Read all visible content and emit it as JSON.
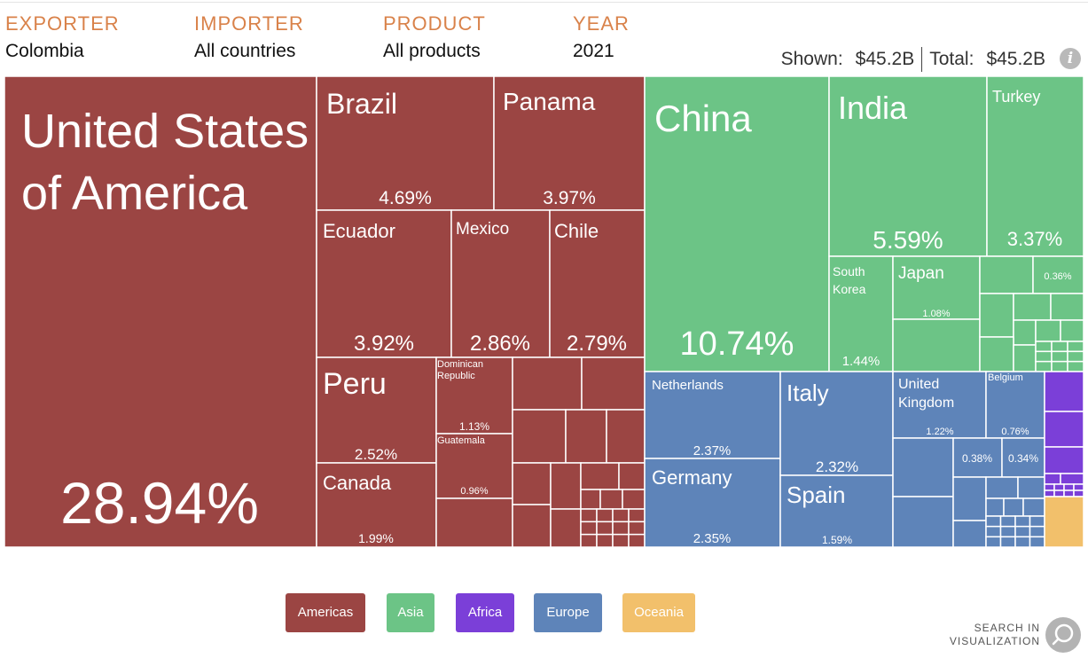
{
  "filters": [
    {
      "label": "EXPORTER",
      "value": "Colombia"
    },
    {
      "label": "IMPORTER",
      "value": "All countries"
    },
    {
      "label": "PRODUCT",
      "value": "All products"
    },
    {
      "label": "YEAR",
      "value": "2021"
    }
  ],
  "totals": {
    "shown_label": "Shown:",
    "shown_value": "$45.2B",
    "total_label": "Total:",
    "total_value": "$45.2B"
  },
  "info_icon": "info-icon",
  "colors": {
    "Americas": "#9b4543",
    "Asia": "#6cc486",
    "Africa": "#7b3fd8",
    "Europe": "#5e84b9",
    "Oceania": "#f2c06b"
  },
  "legend": [
    {
      "label": "Americas",
      "color": "#9b4543"
    },
    {
      "label": "Asia",
      "color": "#6cc486"
    },
    {
      "label": "Africa",
      "color": "#7b3fd8"
    },
    {
      "label": "Europe",
      "color": "#5e84b9"
    },
    {
      "label": "Oceania",
      "color": "#f2c06b"
    }
  ],
  "search": {
    "line1": "SEARCH IN",
    "line2": "VISUALIZATION",
    "icon": "search-icon"
  },
  "chart_data": {
    "type": "treemap",
    "title": "Colombia exports to all countries, all products, 2021",
    "total": "$45.2B",
    "unit": "percent of total exports",
    "items": [
      {
        "name": "United States of America",
        "region": "Americas",
        "value": 28.94,
        "label": "28.94%"
      },
      {
        "name": "Brazil",
        "region": "Americas",
        "value": 4.69,
        "label": "4.69%"
      },
      {
        "name": "Panama",
        "region": "Americas",
        "value": 3.97,
        "label": "3.97%"
      },
      {
        "name": "Ecuador",
        "region": "Americas",
        "value": 3.92,
        "label": "3.92%"
      },
      {
        "name": "Mexico",
        "region": "Americas",
        "value": 2.86,
        "label": "2.86%"
      },
      {
        "name": "Chile",
        "region": "Americas",
        "value": 2.79,
        "label": "2.79%"
      },
      {
        "name": "Peru",
        "region": "Americas",
        "value": 2.52,
        "label": "2.52%"
      },
      {
        "name": "Dominican Republic",
        "region": "Americas",
        "value": 1.13,
        "label": "1.13%"
      },
      {
        "name": "Guatemala",
        "region": "Americas",
        "value": 0.96,
        "label": "0.96%"
      },
      {
        "name": "Canada",
        "region": "Americas",
        "value": 1.99,
        "label": "1.99%"
      },
      {
        "name": "China",
        "region": "Asia",
        "value": 10.74,
        "label": "10.74%"
      },
      {
        "name": "India",
        "region": "Asia",
        "value": 5.59,
        "label": "5.59%"
      },
      {
        "name": "Turkey",
        "region": "Asia",
        "value": 3.37,
        "label": "3.37%"
      },
      {
        "name": "South Korea",
        "region": "Asia",
        "value": 1.44,
        "label": "1.44%"
      },
      {
        "name": "Japan",
        "region": "Asia",
        "value": 1.08,
        "label": "1.08%"
      },
      {
        "name": "",
        "region": "Asia",
        "value": 0.36,
        "label": "0.36%"
      },
      {
        "name": "Netherlands",
        "region": "Europe",
        "value": 2.37,
        "label": "2.37%"
      },
      {
        "name": "Italy",
        "region": "Europe",
        "value": 2.32,
        "label": "2.32%"
      },
      {
        "name": "Germany",
        "region": "Europe",
        "value": 2.35,
        "label": "2.35%"
      },
      {
        "name": "Spain",
        "region": "Europe",
        "value": 1.59,
        "label": "1.59%"
      },
      {
        "name": "United Kingdom",
        "region": "Europe",
        "value": 1.22,
        "label": "1.22%"
      },
      {
        "name": "Belgium",
        "region": "Europe",
        "value": 0.76,
        "label": "0.76%"
      },
      {
        "name": "",
        "region": "Europe",
        "value": 0.38,
        "label": "0.38%"
      },
      {
        "name": "",
        "region": "Europe",
        "value": 0.34,
        "label": "0.34%"
      }
    ]
  }
}
